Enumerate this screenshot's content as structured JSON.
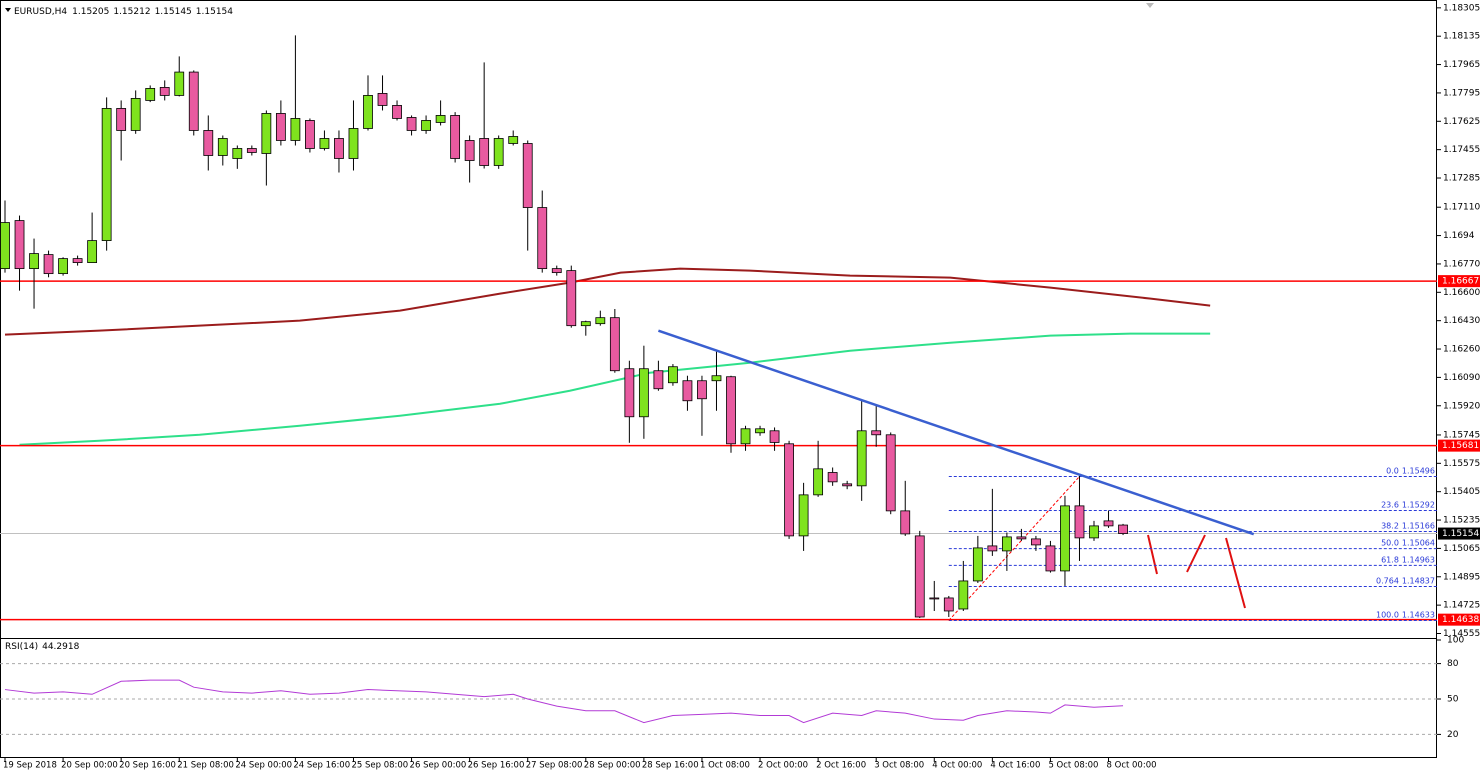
{
  "chart_data": {
    "type": "candlestick",
    "title": "EURUSD,H4",
    "categories": [
      "19 Sep 2018",
      null,
      null,
      null,
      "20 Sep 00:00",
      null,
      null,
      null,
      "20 Sep 16:00",
      null,
      null,
      null,
      "21 Sep 08:00",
      null,
      null,
      null,
      "24 Sep 00:00",
      null,
      null,
      null,
      "24 Sep 16:00",
      null,
      null,
      null,
      "25 Sep 08:00",
      null,
      null,
      null,
      "26 Sep 00:00",
      null,
      null,
      null,
      "26 Sep 16:00",
      null,
      null,
      null,
      "27 Sep 08:00",
      null,
      null,
      null,
      "28 Sep 00:00",
      null,
      null,
      null,
      "28 Sep 16:00",
      null,
      null,
      null,
      "1 Oct 08:00",
      null,
      null,
      null,
      "2 Oct 00:00",
      null,
      null,
      null,
      "2 Oct 16:00",
      null,
      null,
      null,
      "3 Oct 08:00",
      null,
      null,
      null,
      "4 Oct 00:00",
      null,
      null,
      null,
      "4 Oct 16:00",
      null,
      null,
      null,
      "5 Oct 08:00",
      null,
      null,
      null,
      "8 Oct 00:00",
      null
    ],
    "open": [
      1.16742,
      1.1703,
      1.16742,
      1.16826,
      1.16712,
      1.16802,
      1.16778,
      1.1691,
      1.17702,
      1.1757,
      1.1775,
      1.17828,
      1.1778,
      1.1792,
      1.1757,
      1.1742,
      1.17402,
      1.17462,
      1.17432,
      1.17672,
      1.1751,
      1.1763,
      1.17462,
      1.17522,
      1.17402,
      1.17582,
      1.17792,
      1.1772,
      1.17648,
      1.1757,
      1.17618,
      1.1766,
      1.1751,
      1.17522,
      1.1736,
      1.17492,
      1.17492,
      1.17108,
      1.16742,
      1.1673,
      1.164,
      1.16412,
      1.16448,
      1.16142,
      1.15854,
      1.1613,
      1.16058,
      1.1607,
      1.1607,
      1.1607,
      1.16094,
      1.15692,
      1.15758,
      1.1577,
      1.15692,
      1.1514,
      1.15386,
      1.1552,
      1.15452,
      1.1544,
      1.1577,
      1.15746,
      1.1529,
      1.1514,
      1.14768,
      1.14768,
      1.14702,
      1.1487,
      1.1508,
      1.1505,
      1.15134,
      1.15122,
      1.1508,
      1.1493,
      1.1532,
      1.15128,
      1.1523,
      1.15205
    ],
    "high": [
      1.1715,
      1.1706,
      1.16922,
      1.1685,
      1.1681,
      1.1682,
      1.17078,
      1.17768,
      1.1775,
      1.1781,
      1.1784,
      1.1787,
      1.18014,
      1.1793,
      1.1766,
      1.1754,
      1.1748,
      1.1748,
      1.1769,
      1.1775,
      1.1814,
      1.17642,
      1.1757,
      1.1757,
      1.1775,
      1.179,
      1.179,
      1.1775,
      1.1766,
      1.1766,
      1.1775,
      1.1768,
      1.1754,
      1.17978,
      1.1754,
      1.1757,
      1.1751,
      1.1721,
      1.1676,
      1.1676,
      1.1643,
      1.1649,
      1.165,
      1.1619,
      1.1628,
      1.1619,
      1.1617,
      1.161,
      1.161,
      1.1625,
      1.161,
      1.158,
      1.158,
      1.1579,
      1.1571,
      1.15458,
      1.1571,
      1.1555,
      1.1547,
      1.1595,
      1.1592,
      1.1576,
      1.1547,
      1.1517,
      1.1487,
      1.1478,
      1.1499,
      1.1514,
      1.15422,
      1.1516,
      1.15182,
      1.1514,
      1.1511,
      1.1538,
      1.155,
      1.1523,
      1.15292,
      1.15212
    ],
    "low": [
      1.16718,
      1.1661,
      1.16502,
      1.1669,
      1.167,
      1.1676,
      1.16778,
      1.1685,
      1.1739,
      1.1755,
      1.1774,
      1.1775,
      1.17774,
      1.1754,
      1.1733,
      1.1736,
      1.1734,
      1.1742,
      1.1724,
      1.1748,
      1.1748,
      1.17438,
      1.1745,
      1.17318,
      1.1733,
      1.1757,
      1.1769,
      1.1763,
      1.1754,
      1.1755,
      1.176,
      1.17378,
      1.17258,
      1.17342,
      1.1734,
      1.1748,
      1.1685,
      1.16718,
      1.167,
      1.16388,
      1.1634,
      1.164,
      1.16118,
      1.15698,
      1.15722,
      1.1601,
      1.1604,
      1.1589,
      1.1574,
      1.1589,
      1.15638,
      1.1565,
      1.1574,
      1.1565,
      1.15122,
      1.1505,
      1.15374,
      1.1544,
      1.1542,
      1.1535,
      1.15674,
      1.1527,
      1.1514,
      1.14648,
      1.1469,
      1.14654,
      1.1469,
      1.14858,
      1.1502,
      1.1493,
      1.1511,
      1.1505,
      1.1492,
      1.1484,
      1.1499,
      1.1511,
      1.15188,
      1.15145
    ],
    "close": [
      1.17018,
      1.16742,
      1.16832,
      1.16712,
      1.16802,
      1.16778,
      1.1691,
      1.17702,
      1.1757,
      1.17762,
      1.17822,
      1.1778,
      1.1792,
      1.1757,
      1.1742,
      1.17522,
      1.17462,
      1.17438,
      1.17672,
      1.1751,
      1.17642,
      1.17462,
      1.17522,
      1.17402,
      1.17582,
      1.1778,
      1.1772,
      1.17642,
      1.1757,
      1.1763,
      1.1766,
      1.17402,
      1.1739,
      1.1736,
      1.17522,
      1.17534,
      1.17108,
      1.16742,
      1.16718,
      1.164,
      1.16424,
      1.16448,
      1.1613,
      1.15854,
      1.16142,
      1.16022,
      1.16154,
      1.1595,
      1.15962,
      1.161,
      1.15692,
      1.15782,
      1.15782,
      1.157,
      1.1514,
      1.15386,
      1.15542,
      1.15464,
      1.1544,
      1.1577,
      1.15746,
      1.1529,
      1.15152,
      1.14654,
      1.14762,
      1.1469,
      1.1487,
      1.15068,
      1.1505,
      1.15134,
      1.15122,
      1.15086,
      1.1493,
      1.1532,
      1.15128,
      1.152,
      1.152,
      1.15154
    ],
    "up_color": "#7fe31e",
    "down_color": "#e85aa0",
    "ylim": [
      1.1454,
      1.1834
    ],
    "yticks": [
      1.18305,
      1.18135,
      1.17965,
      1.17795,
      1.17625,
      1.17455,
      1.17285,
      {
        "value": 1.1711,
        "label": "1.17110"
      },
      1.1694,
      {
        "value": 1.1677,
        "label": "1.16770"
      },
      {
        "value": 1.166,
        "label": "1.16600"
      },
      {
        "value": 1.1643,
        "label": "1.16430"
      },
      {
        "value": 1.1626,
        "label": "1.16260"
      },
      {
        "value": 1.1609,
        "label": "1.16090"
      },
      {
        "value": 1.1592,
        "label": "1.15920"
      },
      1.15745,
      1.15575,
      1.15405,
      1.15235,
      1.15065,
      1.14895,
      1.14725,
      1.14555
    ],
    "grid": false,
    "overlays": [
      {
        "color": "#9b1c1c",
        "x": [
          0,
          6.5,
          13.4,
          20.3,
          27.2,
          34.1,
          38.9,
          42.4,
          46.5,
          51.3,
          58.2,
          65.1,
          72,
          78.9,
          83
        ],
        "values": [
          1.16346,
          1.1637,
          1.164,
          1.1643,
          1.1649,
          1.16592,
          1.16658,
          1.16718,
          1.16742,
          1.1673,
          1.167,
          1.16688,
          1.16628,
          1.16562,
          1.1652
        ]
      },
      {
        "color": "#2ee08a",
        "x": [
          1,
          6.5,
          13.4,
          20.3,
          27.2,
          34.1,
          38.9,
          44.4,
          51.3,
          58.2,
          65.1,
          72,
          77.5,
          83
        ],
        "values": [
          1.15686,
          1.1571,
          1.15746,
          1.158,
          1.1586,
          1.15932,
          1.1601,
          1.16118,
          1.16178,
          1.1625,
          1.16298,
          1.1634,
          1.16352,
          1.16352
        ]
      }
    ],
    "levels_color": "#ff0000",
    "levels": [
      1.16667,
      1.15681,
      1.14638
    ],
    "trendline": {
      "color": "#3a5fd0",
      "x": [
        45,
        86
      ],
      "y": [
        1.1637,
        1.1515
      ]
    },
    "fibonacci": {
      "color": "#2a3ad8",
      "anchor_color": "#ff0000",
      "anchor_x": [
        65,
        74
      ],
      "levels": [
        {
          "level": "0.0",
          "price": 1.15496
        },
        {
          "level": "23.6",
          "price": 1.15292
        },
        {
          "level": "38.2",
          "price": 1.15166
        },
        {
          "level": "50.0",
          "price": 1.15064
        },
        {
          "level": "61.8",
          "price": 1.14963
        },
        {
          "level": "0.764",
          "price": 1.14837
        },
        {
          "level": "100.0",
          "price": 1.14633
        }
      ]
    },
    "rsi": {
      "name": "RSI(14)",
      "color": "#b23ad6",
      "ylim": [
        0,
        100
      ],
      "yticks": [
        100,
        80,
        50,
        20
      ],
      "x": [
        0,
        2,
        4,
        6,
        8,
        10,
        12,
        13,
        15,
        17,
        19,
        21,
        23,
        25,
        27,
        29,
        31,
        33,
        35,
        36,
        38,
        40,
        42,
        44,
        46,
        48,
        50,
        52,
        54,
        55,
        57,
        59,
        60,
        62,
        64,
        66,
        67,
        69,
        71,
        72,
        73,
        75,
        77
      ],
      "values": [
        58,
        55,
        56,
        54,
        65,
        66,
        66,
        60,
        56,
        55,
        57,
        54,
        55,
        58,
        57,
        56,
        54,
        52,
        54,
        50,
        44,
        40,
        40,
        30,
        36,
        37,
        38,
        36,
        36,
        30,
        38,
        36,
        40,
        38,
        33,
        32,
        36,
        40,
        39,
        38,
        45,
        43,
        44.2918
      ]
    }
  }
}
